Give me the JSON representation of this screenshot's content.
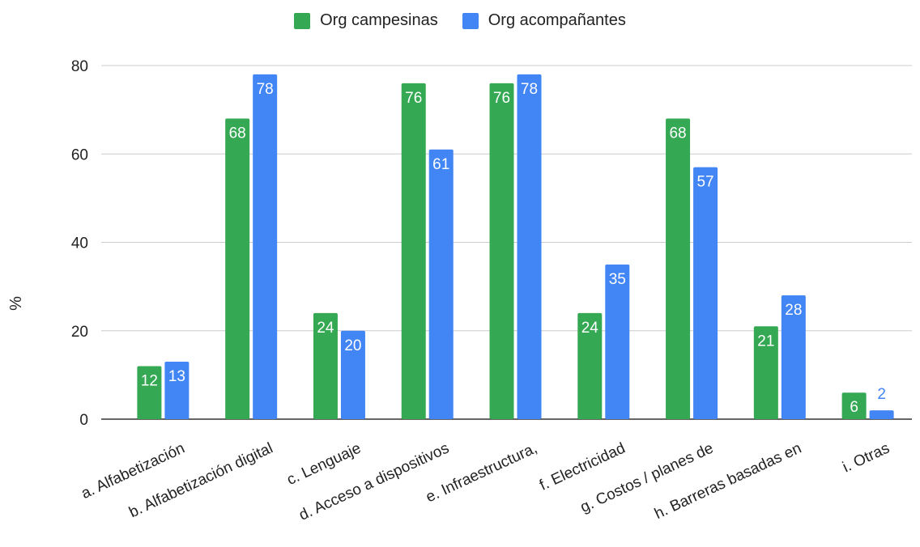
{
  "chart_data": {
    "type": "bar",
    "categories": [
      "a. Alfabetización",
      "b. Alfabetización digital",
      "c. Lenguaje",
      "d. Acceso a dispositivos",
      "e. Infraestructura,",
      "f. Electricidad",
      "g. Costos / planes de",
      "h. Barreras basadas en",
      "i. Otras"
    ],
    "series": [
      {
        "name": "Org campesinas",
        "color": "#34a853",
        "values": [
          12,
          68,
          24,
          76,
          76,
          24,
          68,
          21,
          6
        ]
      },
      {
        "name": "Org acompañantes",
        "color": "#4285f4",
        "values": [
          13,
          78,
          20,
          61,
          78,
          35,
          57,
          28,
          2
        ]
      }
    ],
    "xlabel": "",
    "ylabel": "%",
    "ylim": [
      0,
      80
    ],
    "yticks": [
      0,
      20,
      40,
      60,
      80
    ],
    "grid": true,
    "legend_position": "top-center"
  }
}
